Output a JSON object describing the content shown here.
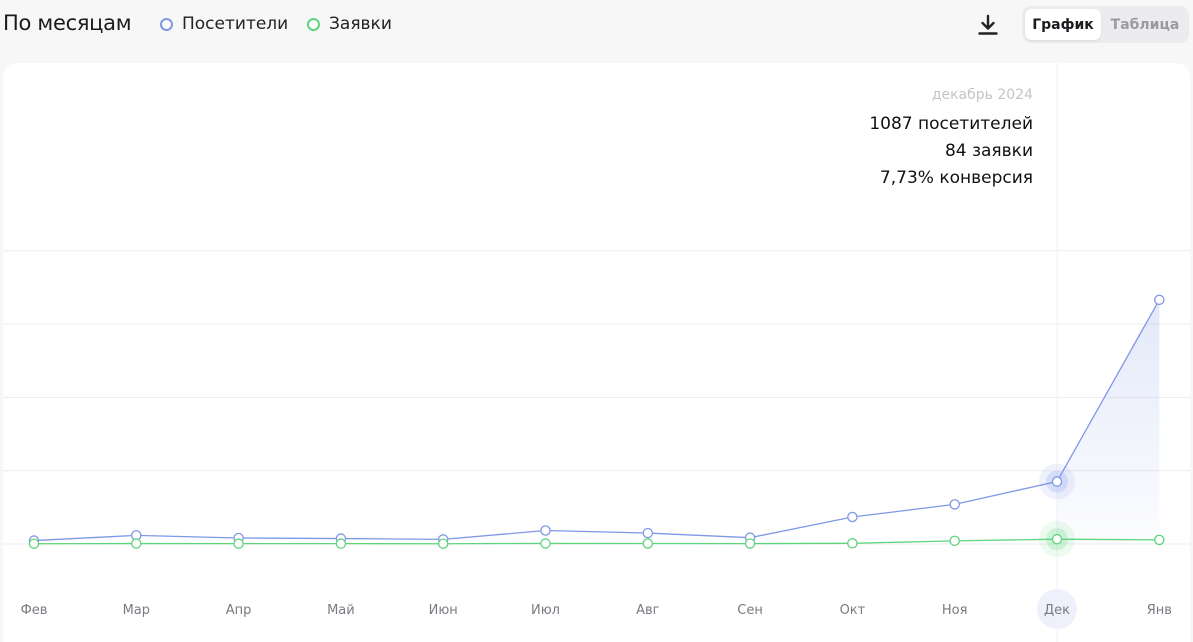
{
  "header": {
    "title": "По месяцам",
    "legend": [
      {
        "label": "Посетители",
        "color": "#7f98e6"
      },
      {
        "label": "Заявки",
        "color": "#5fd47e"
      }
    ],
    "download_icon": "download-icon",
    "view_toggle": {
      "active": "График",
      "inactive": "Таблица"
    }
  },
  "tooltip": {
    "date": "декабрь 2024",
    "visitors": "1087 посетителей",
    "requests": "84 заявки",
    "conversion": "7,73% конверсия"
  },
  "chart_data": {
    "type": "line",
    "categories": [
      "Фев",
      "Мар",
      "Апр",
      "Май",
      "Июн",
      "Июл",
      "Авг",
      "Сен",
      "Окт",
      "Ноя",
      "Дек",
      "Янв"
    ],
    "series": [
      {
        "name": "Посетители",
        "color": "#7f98e6",
        "values": [
          60,
          150,
          105,
          95,
          80,
          235,
          190,
          110,
          470,
          690,
          1087,
          4250
        ]
      },
      {
        "name": "Заявки",
        "color": "#5fd47e",
        "values": [
          5,
          8,
          6,
          6,
          5,
          10,
          9,
          7,
          12,
          55,
          84,
          72
        ]
      }
    ],
    "highlighted_category": "Дек",
    "ylim": [
      0,
      5100
    ],
    "grid": true,
    "y_tick_labels_shown": false
  }
}
